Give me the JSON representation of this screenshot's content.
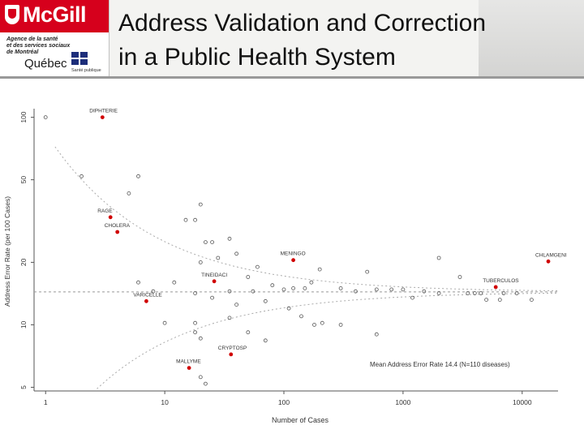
{
  "header": {
    "logo_text": "McGill",
    "partner_lines": [
      "Agence de la santé",
      "et des services sociaux",
      "de Montréal"
    ],
    "partner_province": "Québec",
    "partner_tag": "Santé publique",
    "title_line1": "Address Validation and Correction",
    "title_line2": "in a Public Health System"
  },
  "colors": {
    "brand_red": "#d6001c",
    "highlight_point": "#d00000"
  },
  "chart_data": {
    "type": "scatter",
    "xlabel": "Number of Cases",
    "ylabel": "Address Error Rate (per 100 Cases)",
    "x_scale": "log",
    "y_scale": "log",
    "xlim": [
      0.8,
      20000
    ],
    "ylim": [
      4.8,
      110
    ],
    "x_ticks": [
      1,
      10,
      100,
      1000,
      10000
    ],
    "y_ticks": [
      5,
      10,
      20,
      50,
      100
    ],
    "mean_line": 14.4,
    "annotation": "Mean Address Error Rate 14.4 (N=110 diseases)",
    "highlighted": [
      {
        "label": "DIPHTERIE",
        "x": 3,
        "y": 100
      },
      {
        "label": "RAGE",
        "x": 3.5,
        "y": 33
      },
      {
        "label": "CHOLERA",
        "x": 4,
        "y": 28
      },
      {
        "label": "VARICELLE",
        "x": 7,
        "y": 13
      },
      {
        "label": "MALLYME",
        "x": 16,
        "y": 6.2
      },
      {
        "label": "CRYPTOSP",
        "x": 36,
        "y": 7.2
      },
      {
        "label": "TINEIDACI",
        "x": 26,
        "y": 16.2
      },
      {
        "label": "MENINGO",
        "x": 120,
        "y": 20.5
      },
      {
        "label": "TUBERCULOS",
        "x": 6000,
        "y": 15.2
      },
      {
        "label": "CHLAMGENI",
        "x": 40000,
        "y": 20.2
      }
    ],
    "points": [
      {
        "x": 1,
        "y": 100
      },
      {
        "x": 2,
        "y": 52
      },
      {
        "x": 6,
        "y": 52
      },
      {
        "x": 5,
        "y": 43
      },
      {
        "x": 20,
        "y": 38
      },
      {
        "x": 15,
        "y": 32
      },
      {
        "x": 18,
        "y": 32
      },
      {
        "x": 22,
        "y": 25
      },
      {
        "x": 25,
        "y": 25
      },
      {
        "x": 35,
        "y": 26
      },
      {
        "x": 40,
        "y": 22
      },
      {
        "x": 20,
        "y": 20
      },
      {
        "x": 28,
        "y": 21
      },
      {
        "x": 60,
        "y": 19
      },
      {
        "x": 200,
        "y": 18.5
      },
      {
        "x": 500,
        "y": 18
      },
      {
        "x": 2000,
        "y": 21
      },
      {
        "x": 3000,
        "y": 17
      },
      {
        "x": 6,
        "y": 16
      },
      {
        "x": 12,
        "y": 16
      },
      {
        "x": 50,
        "y": 17
      },
      {
        "x": 80,
        "y": 15.5
      },
      {
        "x": 100,
        "y": 14.8
      },
      {
        "x": 120,
        "y": 15
      },
      {
        "x": 150,
        "y": 15
      },
      {
        "x": 170,
        "y": 16
      },
      {
        "x": 300,
        "y": 15
      },
      {
        "x": 400,
        "y": 14.5
      },
      {
        "x": 600,
        "y": 14.8
      },
      {
        "x": 800,
        "y": 14.8
      },
      {
        "x": 1000,
        "y": 14.8
      },
      {
        "x": 1500,
        "y": 14.5
      },
      {
        "x": 3500,
        "y": 14.2
      },
      {
        "x": 4000,
        "y": 14.2
      },
      {
        "x": 4500,
        "y": 14.2
      },
      {
        "x": 7000,
        "y": 14.2
      },
      {
        "x": 1200,
        "y": 13.5
      },
      {
        "x": 2000,
        "y": 14.2
      },
      {
        "x": 5000,
        "y": 13.2
      },
      {
        "x": 6500,
        "y": 13.2
      },
      {
        "x": 9000,
        "y": 14.2
      },
      {
        "x": 12000,
        "y": 13.2
      },
      {
        "x": 8,
        "y": 14.5
      },
      {
        "x": 18,
        "y": 14.2
      },
      {
        "x": 25,
        "y": 13.5
      },
      {
        "x": 35,
        "y": 14.5
      },
      {
        "x": 40,
        "y": 12.5
      },
      {
        "x": 55,
        "y": 14.5
      },
      {
        "x": 70,
        "y": 13
      },
      {
        "x": 110,
        "y": 12
      },
      {
        "x": 140,
        "y": 11
      },
      {
        "x": 180,
        "y": 10
      },
      {
        "x": 210,
        "y": 10.2
      },
      {
        "x": 300,
        "y": 10
      },
      {
        "x": 600,
        "y": 9
      },
      {
        "x": 35,
        "y": 10.8
      },
      {
        "x": 10,
        "y": 10.2
      },
      {
        "x": 18,
        "y": 10.2
      },
      {
        "x": 50,
        "y": 9.2
      },
      {
        "x": 70,
        "y": 8.4
      },
      {
        "x": 18,
        "y": 9.2
      },
      {
        "x": 20,
        "y": 8.6
      },
      {
        "x": 20,
        "y": 5.6
      },
      {
        "x": 22,
        "y": 5.2
      }
    ]
  }
}
